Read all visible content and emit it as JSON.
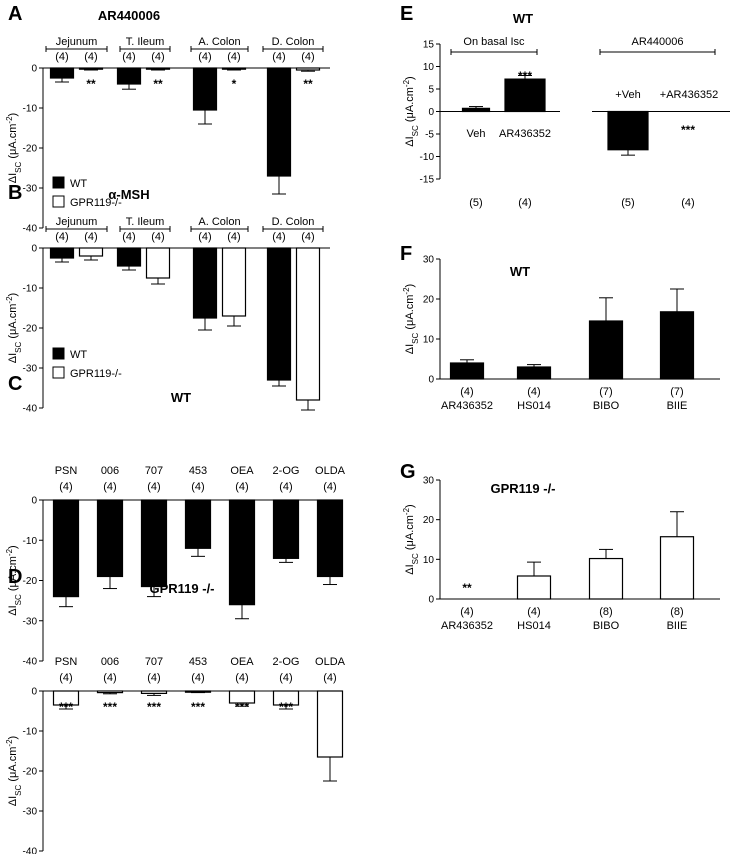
{
  "chart_data": [
    {
      "id": "A",
      "panel_letter": "A",
      "type": "bar",
      "title": "AR440006",
      "ylabel_main": "ΔI",
      "ylabel_sub": "SC",
      "ylabel_unit": " (μA.cm",
      "ylabel_sup": "-2",
      "ylabel_close": ")",
      "ylim": [
        -40,
        0
      ],
      "yticks": [
        0,
        -10,
        -20,
        -30,
        -40
      ],
      "groups": [
        {
          "label": "Jejunum",
          "bars": [
            {
              "series": "WT",
              "value": -2.5,
              "err": 1,
              "n": "(4)",
              "sig": ""
            },
            {
              "series": "GPR119-/-",
              "value": -0.3,
              "err": 0.2,
              "n": "(4)",
              "sig": "**"
            }
          ]
        },
        {
          "label": "T. Ileum",
          "bars": [
            {
              "series": "WT",
              "value": -4,
              "err": 1.3,
              "n": "(4)",
              "sig": ""
            },
            {
              "series": "GPR119-/-",
              "value": -0.3,
              "err": 0.2,
              "n": "(4)",
              "sig": "**"
            }
          ]
        },
        {
          "label": "A. Colon",
          "bars": [
            {
              "series": "WT",
              "value": -10.5,
              "err": 3.5,
              "n": "(4)",
              "sig": ""
            },
            {
              "series": "GPR119-/-",
              "value": -0.3,
              "err": 0.2,
              "n": "(4)",
              "sig": "*"
            }
          ]
        },
        {
          "label": "D. Colon",
          "bars": [
            {
              "series": "WT",
              "value": -27,
              "err": 4.5,
              "n": "(4)",
              "sig": ""
            },
            {
              "series": "GPR119-/-",
              "value": -0.5,
              "err": 0.3,
              "n": "(4)",
              "sig": "**"
            }
          ]
        }
      ],
      "legend": [
        "WT",
        "GPR119-/-"
      ]
    },
    {
      "id": "B",
      "panel_letter": "B",
      "type": "bar",
      "title": "α-MSH",
      "ylabel_main": "ΔI",
      "ylabel_sub": "SC",
      "ylabel_unit": " (μA.cm",
      "ylabel_sup": "-2",
      "ylabel_close": ")",
      "ylim": [
        -40,
        0
      ],
      "yticks": [
        0,
        -10,
        -20,
        -30,
        -40
      ],
      "groups": [
        {
          "label": "Jejunum",
          "bars": [
            {
              "series": "WT",
              "value": -2.5,
              "err": 1,
              "n": "(4)",
              "sig": ""
            },
            {
              "series": "GPR119-/-",
              "value": -2,
              "err": 1,
              "n": "(4)",
              "sig": ""
            }
          ]
        },
        {
          "label": "T. Ileum",
          "bars": [
            {
              "series": "WT",
              "value": -4.5,
              "err": 1,
              "n": "(4)",
              "sig": ""
            },
            {
              "series": "GPR119-/-",
              "value": -7.5,
              "err": 1.5,
              "n": "(4)",
              "sig": ""
            }
          ]
        },
        {
          "label": "A. Colon",
          "bars": [
            {
              "series": "WT",
              "value": -17.5,
              "err": 3,
              "n": "(4)",
              "sig": ""
            },
            {
              "series": "GPR119-/-",
              "value": -17,
              "err": 2.5,
              "n": "(4)",
              "sig": ""
            }
          ]
        },
        {
          "label": "D. Colon",
          "bars": [
            {
              "series": "WT",
              "value": -33,
              "err": 1.5,
              "n": "(4)",
              "sig": ""
            },
            {
              "series": "GPR119-/-",
              "value": -38,
              "err": 2.5,
              "n": "(4)",
              "sig": ""
            }
          ]
        }
      ],
      "legend": [
        "WT",
        "GPR119-/-"
      ]
    },
    {
      "id": "C",
      "panel_letter": "C",
      "type": "bar",
      "title": "WT",
      "ylabel_main": "ΔI",
      "ylabel_sub": "SC",
      "ylabel_unit": " (μA.cm",
      "ylabel_sup": "-2",
      "ylabel_close": ")",
      "ylim": [
        -40,
        0
      ],
      "yticks": [
        0,
        -10,
        -20,
        -30,
        -40
      ],
      "categories": [
        "PSN",
        "006",
        "707",
        "453",
        "OEA",
        "2-OG",
        "OLDA"
      ],
      "values": [
        -24,
        -19,
        -21.5,
        -12,
        -26,
        -14.5,
        -19
      ],
      "errors": [
        2.5,
        3,
        2.5,
        2,
        3.5,
        1,
        2
      ],
      "n": [
        "(4)",
        "(4)",
        "(4)",
        "(4)",
        "(4)",
        "(4)",
        "(4)"
      ],
      "sig": [
        "",
        "",
        "",
        "",
        "",
        "",
        ""
      ],
      "fill": "black"
    },
    {
      "id": "D",
      "panel_letter": "D",
      "type": "bar",
      "title": "GPR119 -/-",
      "ylabel_main": "ΔI",
      "ylabel_sub": "SC",
      "ylabel_unit": " (μA.cm",
      "ylabel_sup": "-2",
      "ylabel_close": ")",
      "ylim": [
        -40,
        0
      ],
      "yticks": [
        0,
        -10,
        -20,
        -30,
        -40
      ],
      "categories": [
        "PSN",
        "006",
        "707",
        "453",
        "OEA",
        "2-OG",
        "OLDA"
      ],
      "values": [
        -3.5,
        -0.4,
        -0.6,
        -0.2,
        -3,
        -3.5,
        -16.5
      ],
      "errors": [
        1,
        0.3,
        0.5,
        0.2,
        0.8,
        1,
        6
      ],
      "n": [
        "(4)",
        "(4)",
        "(4)",
        "(4)",
        "(4)",
        "(4)",
        "(4)"
      ],
      "sig": [
        "***",
        "***",
        "***",
        "***",
        "***",
        "***",
        ""
      ],
      "fill": "white"
    },
    {
      "id": "E",
      "panel_letter": "E",
      "type": "bar",
      "title": "WT",
      "ylabel_main": "ΔI",
      "ylabel_sub": "SC",
      "ylabel_unit": " (μA.cm",
      "ylabel_sup": "-2",
      "ylabel_close": ")",
      "ylim": [
        -15,
        15
      ],
      "yticks": [
        15,
        10,
        5,
        0,
        -5,
        -10,
        -15
      ],
      "bracket_left": "On basal Isc",
      "bracket_right": "AR440006",
      "bars": [
        {
          "label": "Veh",
          "value": 0.7,
          "err": 0.4,
          "n": "(5)",
          "sig": ""
        },
        {
          "label": "AR436352",
          "value": 7.2,
          "err": 0.8,
          "n": "(4)",
          "sig": "***"
        },
        {
          "label": "+Veh",
          "value": -8.5,
          "err": 1.2,
          "n": "(5)",
          "sig": ""
        },
        {
          "label": "+AR436352",
          "value": 0,
          "err": 0,
          "n": "(4)",
          "sig": "***"
        }
      ]
    },
    {
      "id": "F",
      "panel_letter": "F",
      "type": "bar",
      "title": "WT",
      "ylabel_main": "ΔI",
      "ylabel_sub": "SC",
      "ylabel_unit": " (μA.cm",
      "ylabel_sup": "-2",
      "ylabel_close": ")",
      "ylim": [
        0,
        30
      ],
      "yticks": [
        0,
        10,
        20,
        30
      ],
      "categories": [
        "AR436352",
        "HS014",
        "BIBO",
        "BIIE"
      ],
      "values": [
        4,
        3,
        14.5,
        16.8
      ],
      "errors": [
        0.8,
        0.6,
        5.8,
        5.7
      ],
      "n": [
        "(4)",
        "(4)",
        "(7)",
        "(7)"
      ],
      "sig": [
        "",
        "",
        "",
        ""
      ],
      "fill": "black"
    },
    {
      "id": "G",
      "panel_letter": "G",
      "type": "bar",
      "title": "GPR119 -/-",
      "ylabel_main": "ΔI",
      "ylabel_sub": "SC",
      "ylabel_unit": " (μA.cm",
      "ylabel_sup": "-2",
      "ylabel_close": ")",
      "ylim": [
        0,
        30
      ],
      "yticks": [
        0,
        10,
        20,
        30
      ],
      "categories": [
        "AR436352",
        "HS014",
        "BIBO",
        "BIIE"
      ],
      "values": [
        0,
        5.8,
        10.2,
        15.7
      ],
      "errors": [
        0,
        3.5,
        2.3,
        6.3
      ],
      "n": [
        "(4)",
        "(4)",
        "(8)",
        "(8)"
      ],
      "sig": [
        "**",
        "",
        "",
        ""
      ],
      "fill": "white"
    }
  ]
}
